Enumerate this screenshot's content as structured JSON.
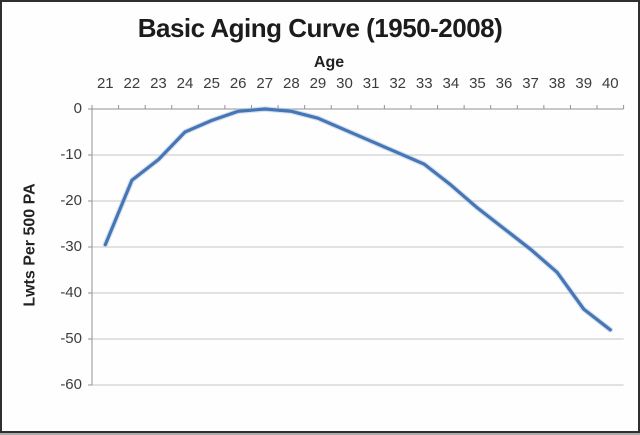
{
  "window": {
    "background": "#fffefe",
    "border_color": "#2f2f2f"
  },
  "chart_data": {
    "type": "line",
    "title": "Basic Aging Curve (1950-2008)",
    "xlabel": "Age",
    "ylabel": "Lwts Per 500 PA",
    "xaxis_position": "top",
    "x": [
      21,
      22,
      23,
      24,
      25,
      26,
      27,
      28,
      29,
      30,
      31,
      32,
      33,
      34,
      35,
      36,
      37,
      38,
      39,
      40
    ],
    "values": [
      -29.5,
      -15.5,
      -11,
      -5,
      -2.5,
      -0.5,
      0,
      -0.5,
      -2,
      -4.5,
      -7,
      -9.5,
      -12,
      -16.5,
      -21.5,
      -26,
      -30.5,
      -35.5,
      -43.5,
      -48
    ],
    "ylim": [
      -60,
      0
    ],
    "y_ticks": [
      0,
      -10,
      -20,
      -30,
      -40,
      -50,
      -60
    ],
    "grid": true,
    "legend": false,
    "line_color": "#4776b5",
    "line_halo_color": "#a9c3e2",
    "grid_color": "#c6c6c6",
    "axis_color": "#929292"
  }
}
